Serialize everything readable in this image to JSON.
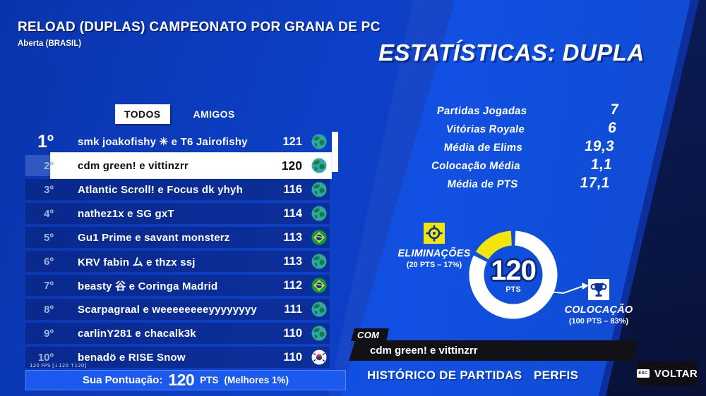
{
  "colors": {
    "accent_yellow": "#f2e50a",
    "panel_blue": "#1150e2",
    "page_blue": "#0c3cc0",
    "dark_navy": "#0a1c55",
    "selected_row": "#ffffff"
  },
  "header": {
    "title": "RELOAD (DUPLAS) CAMPEONATO POR GRANA DE PC",
    "subtitle": "Aberta (BRASIL)"
  },
  "stats_panel": {
    "title": "ESTATÍSTICAS: DUPLA",
    "rows": [
      {
        "label": "Partidas Jogadas",
        "value": "7"
      },
      {
        "label": "Vitórias Royale",
        "value": "6"
      },
      {
        "label": "Média de Elims",
        "value": "19,3"
      },
      {
        "label": "Colocação Média",
        "value": "1,1"
      },
      {
        "label": "Média de PTS",
        "value": "17,1"
      }
    ]
  },
  "tabs": [
    {
      "label": "TODOS",
      "selected": true
    },
    {
      "label": "AMIGOS",
      "selected": false
    }
  ],
  "leaderboard": {
    "rows": [
      {
        "rank": "1º",
        "team": "smk joakofishy ✳ e T6 Jairofishy",
        "points": "121",
        "flag": "globe",
        "selected": false
      },
      {
        "rank": "2º",
        "team": "cdm green! e vittinzrr",
        "points": "120",
        "flag": "globe",
        "selected": true
      },
      {
        "rank": "3º",
        "team": "Atlantic Scroll! e Focus dk yhyh",
        "points": "116",
        "flag": "globe",
        "selected": false
      },
      {
        "rank": "4º",
        "team": "nathez1x e SG gxT",
        "points": "114",
        "flag": "globe",
        "selected": false
      },
      {
        "rank": "5º",
        "team": "Gu1 Prime e savant monsterz",
        "points": "113",
        "flag": "brazil",
        "selected": false
      },
      {
        "rank": "6º",
        "team": "KRV fabin ム e thzx ssj",
        "points": "113",
        "flag": "globe",
        "selected": false
      },
      {
        "rank": "7º",
        "team": "beasty 谷 e Coringa Madrid",
        "points": "112",
        "flag": "brazil",
        "selected": false
      },
      {
        "rank": "8º",
        "team": "Scarpagraal e weeeeeeeeyyyyyyyy",
        "points": "111",
        "flag": "globe",
        "selected": false
      },
      {
        "rank": "9º",
        "team": "carlinY281 e chacalk3k",
        "points": "110",
        "flag": "globe",
        "selected": false
      },
      {
        "rank": "10º",
        "team": "benadö e RISE Snow",
        "points": "110",
        "flag": "south-korea",
        "selected": false
      }
    ]
  },
  "score_bar": {
    "label": "Sua Pontuação:",
    "value": "120",
    "unit": "PTS",
    "qualifier": "(Melhores 1%)"
  },
  "fps_overlay": "120 FPS [↓120 ↑120]",
  "chart_data": {
    "type": "pie",
    "title": "Pontuação 120 PTS",
    "center_value": "120",
    "center_unit": "PTS",
    "legend_position": "sides",
    "segments": [
      {
        "name": "ELIMINAÇÕES",
        "sublabel": "(20 PTS – 17%)",
        "points": 20,
        "percent": 17,
        "color": "#f2e50a"
      },
      {
        "name": "COLOCAÇÃO",
        "sublabel": "(100 PTS – 83%)",
        "points": 100,
        "percent": 83,
        "color": "#ffffff"
      }
    ]
  },
  "partner": {
    "label": "COM",
    "name": "cdm green! e vittinzrr"
  },
  "footer": {
    "history": "HISTÓRICO DE PARTIDAS",
    "profiles": "PERFIS",
    "esc": "ESC",
    "back": "VOLTAR"
  }
}
